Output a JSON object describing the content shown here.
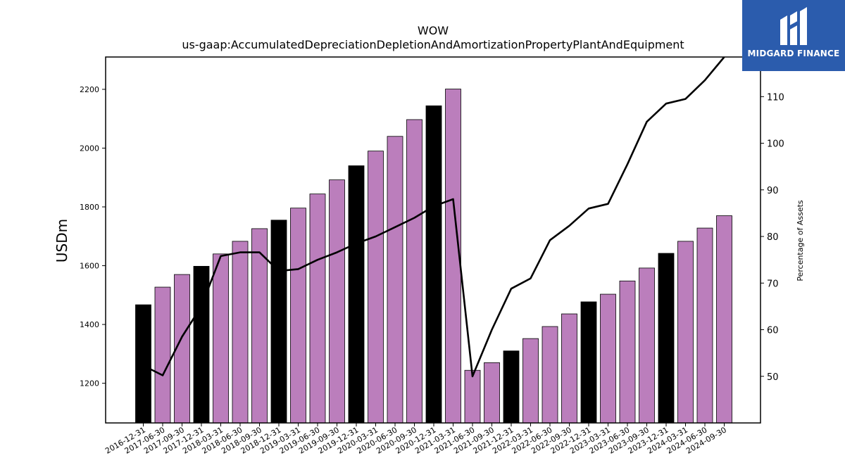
{
  "chart_data": {
    "type": "bar",
    "title": "WOW",
    "subtitle": "us-gaap:AccumulatedDepreciationDepletionAndAmortizationPropertyPlantAndEquipment",
    "ylabel": "USDm",
    "y2label": "Percentage of Assets",
    "ylim": [
      1065,
      2310
    ],
    "y2lim": [
      40,
      118.5
    ],
    "yticks": [
      1200,
      1400,
      1600,
      1800,
      2000,
      2200
    ],
    "y2ticks": [
      50,
      60,
      70,
      80,
      90,
      100,
      110
    ],
    "categories": [
      "2016-12-31",
      "2017-06-30",
      "2017-09-30",
      "2017-12-31",
      "2018-03-31",
      "2018-06-30",
      "2018-09-30",
      "2018-12-31",
      "2019-03-31",
      "2019-06-30",
      "2019-09-30",
      "2019-12-31",
      "2020-03-31",
      "2020-06-30",
      "2020-09-30",
      "2020-12-31",
      "2021-03-31",
      "2021-06-30",
      "2021-09-30",
      "2021-12-31",
      "2022-03-31",
      "2022-06-30",
      "2022-09-30",
      "2022-12-31",
      "2023-03-31",
      "2023-06-30",
      "2023-09-30",
      "2023-12-31",
      "2024-03-31",
      "2024-06-30",
      "2024-09-30"
    ],
    "series": [
      {
        "kind": "bar",
        "values": [
          1467,
          1527,
          1570,
          1598,
          1640,
          1683,
          1726,
          1755,
          1796,
          1844,
          1892,
          1940,
          1990,
          2040,
          2097,
          2144,
          2201,
          1244,
          1270,
          1310,
          1352,
          1393,
          1436,
          1477,
          1503,
          1548,
          1592,
          1642,
          1683,
          1728,
          1770
        ],
        "colors": [
          "#000000",
          "#bb7ebc",
          "#bb7ebc",
          "#000000",
          "#bb7ebc",
          "#bb7ebc",
          "#bb7ebc",
          "#000000",
          "#bb7ebc",
          "#bb7ebc",
          "#bb7ebc",
          "#000000",
          "#bb7ebc",
          "#bb7ebc",
          "#bb7ebc",
          "#000000",
          "#bb7ebc",
          "#bb7ebc",
          "#bb7ebc",
          "#000000",
          "#bb7ebc",
          "#bb7ebc",
          "#bb7ebc",
          "#000000",
          "#bb7ebc",
          "#bb7ebc",
          "#bb7ebc",
          "#000000",
          "#bb7ebc",
          "#bb7ebc",
          "#bb7ebc"
        ]
      },
      {
        "kind": "line",
        "axis": "right",
        "color": "#000000",
        "values": [
          52.3,
          50.2,
          58.5,
          65.0,
          75.8,
          76.6,
          76.6,
          72.6,
          73.0,
          75.0,
          76.6,
          78.5,
          80.0,
          82.0,
          84.0,
          86.5,
          88.0,
          50.0,
          60.0,
          68.8,
          71.0,
          79.2,
          82.3,
          86.0,
          87.0,
          95.5,
          104.6,
          108.5,
          109.5,
          113.5,
          118.5
        ]
      }
    ],
    "grid": false,
    "legend": "none"
  },
  "logo": {
    "text": "MIDGARD FINANCE",
    "color": "#2b5cad"
  }
}
